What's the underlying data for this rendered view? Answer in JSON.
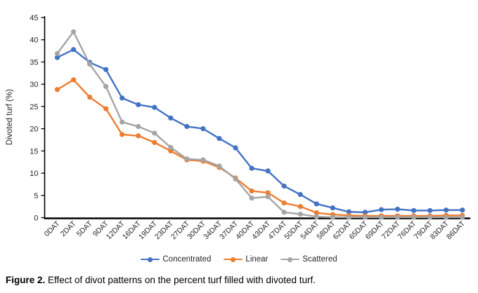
{
  "figure": {
    "caption_label": "Figure 2.",
    "caption_text": " Effect of divot patterns on the percent turf filled with divoted turf."
  },
  "chart_data": {
    "type": "line",
    "title": "",
    "xlabel": "",
    "ylabel": "Divoted turf (%)",
    "ylim": [
      0,
      45
    ],
    "ytick_step": 5,
    "grid": false,
    "legend_position": "bottom",
    "marker": "circle",
    "axis_color": "#000000",
    "tick_label_color": "#262626",
    "categories": [
      "0DAT",
      "2DAT",
      "5DAT",
      "9DAT",
      "12DAT",
      "16DAT",
      "19DAT",
      "23DAT",
      "27DAT",
      "30DAT",
      "34DAT",
      "37DAT",
      "40DAT",
      "43DAT",
      "47DAT",
      "50DAT",
      "54DAT",
      "58DAT",
      "62DAT",
      "65DAT",
      "69DAT",
      "72DAT",
      "76DAT",
      "79DAT",
      "83DAT",
      "86DAT"
    ],
    "series": [
      {
        "name": "Concentrated",
        "color": "#4472C4",
        "values": [
          36.0,
          37.8,
          34.9,
          33.3,
          26.9,
          25.4,
          24.8,
          22.4,
          20.5,
          20.0,
          17.8,
          15.7,
          11.1,
          10.5,
          7.1,
          5.2,
          3.1,
          2.2,
          1.3,
          1.2,
          1.8,
          1.9,
          1.6,
          1.6,
          1.7,
          1.7
        ]
      },
      {
        "name": "Linear",
        "color": "#ED7D31",
        "values": [
          28.8,
          31.0,
          27.1,
          24.5,
          18.7,
          18.4,
          16.9,
          15.0,
          13.0,
          12.7,
          11.3,
          8.9,
          6.0,
          5.6,
          3.3,
          2.5,
          1.1,
          0.7,
          0.5,
          0.4,
          0.4,
          0.4,
          0.4,
          0.4,
          0.5,
          0.5
        ]
      },
      {
        "name": "Scattered",
        "color": "#A5A5A5",
        "values": [
          36.9,
          41.8,
          34.5,
          29.5,
          21.5,
          20.5,
          19.0,
          15.8,
          13.2,
          13.0,
          11.6,
          8.7,
          4.4,
          4.7,
          1.2,
          0.8,
          0.2,
          0.1,
          0.1,
          0.1,
          0.1,
          0.1,
          0.1,
          0.1,
          0.1,
          0.1
        ]
      }
    ]
  }
}
